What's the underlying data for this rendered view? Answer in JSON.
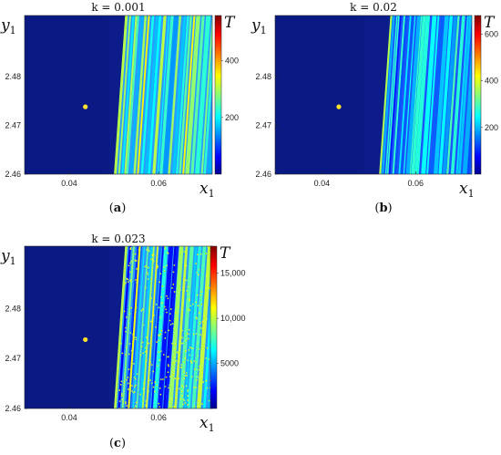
{
  "chart_data": [
    {
      "type": "heatmap",
      "title": "k = 0.001",
      "caption": "a",
      "xlabel": "x1",
      "ylabel": "y1",
      "colorbar_label": "T",
      "x_ticks": [
        "0.04",
        "0.06"
      ],
      "y_ticks": [
        "2.48",
        "2.47",
        "2.46"
      ],
      "colorbar_ticks": [
        "400",
        "200"
      ],
      "x_range": [
        0.03,
        0.072
      ],
      "y_range": [
        2.46,
        2.4925
      ],
      "colorbar_range": [
        0,
        560
      ],
      "boundary_x": {
        "at_y_min": 0.0502,
        "at_y_max": 0.0527
      },
      "marked_point": {
        "x": 0.0436,
        "y": 2.4738,
        "color": "#ffe22a"
      },
      "stripe_level": "low-mid",
      "colormap": "jet"
    },
    {
      "type": "heatmap",
      "title": "k = 0.02",
      "caption": "b",
      "xlabel": "x1",
      "ylabel": "y1",
      "colorbar_label": "T",
      "x_ticks": [
        "0.04",
        "0.06"
      ],
      "y_ticks": [
        "2.48",
        "2.47",
        "2.46"
      ],
      "colorbar_ticks": [
        "600",
        "400",
        "200"
      ],
      "x_range": [
        0.03,
        0.072
      ],
      "y_range": [
        2.46,
        2.4925
      ],
      "colorbar_range": [
        0,
        680
      ],
      "boundary_x": {
        "at_y_min": 0.0524,
        "at_y_max": 0.0548
      },
      "marked_point": {
        "x": 0.0436,
        "y": 2.4738,
        "color": "#ffe22a"
      },
      "stripe_level": "low",
      "colormap": "jet"
    },
    {
      "type": "heatmap",
      "title": "k = 0.023",
      "caption": "c",
      "xlabel": "x1",
      "ylabel": "y1",
      "colorbar_label": "T",
      "x_ticks": [
        "0.04",
        "0.06"
      ],
      "y_ticks": [
        "2.48",
        "2.47",
        "2.46"
      ],
      "colorbar_ticks": [
        "15,000",
        "10,000",
        "5000"
      ],
      "x_range": [
        0.03,
        0.072
      ],
      "y_range": [
        2.46,
        2.4925
      ],
      "colorbar_range": [
        0,
        18000
      ],
      "boundary_x": {
        "at_y_min": 0.0502,
        "at_y_max": 0.0527
      },
      "marked_point": {
        "x": 0.0436,
        "y": 2.4738,
        "color": "#ffe22a"
      },
      "stripe_level": "mixed",
      "colormap": "jet"
    }
  ]
}
